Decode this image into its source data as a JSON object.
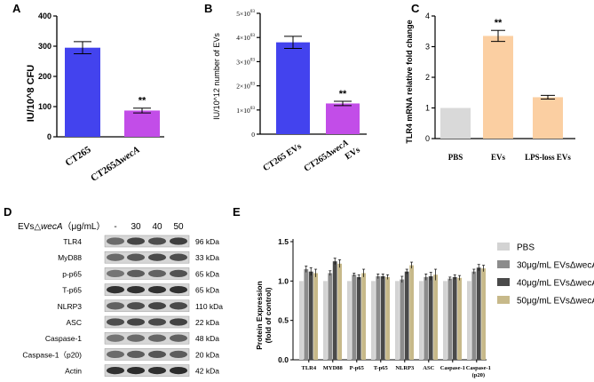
{
  "chart_data": [
    {
      "panel": "A",
      "type": "bar",
      "categories": [
        "CT265",
        "CT265ΔwecA"
      ],
      "values": [
        295,
        87
      ],
      "errors": [
        20,
        8
      ],
      "colors": [
        "#4343ee",
        "#c24de8"
      ],
      "ylabel": "IU/10^8 CFU",
      "ylim": [
        0,
        400
      ],
      "yticks": [
        "0",
        "100",
        "200",
        "300",
        "400"
      ],
      "annotations": [
        "",
        "**"
      ]
    },
    {
      "panel": "B",
      "type": "bar",
      "categories": [
        "CT265 EVs",
        "CT265ΔwecA EVs"
      ],
      "values": [
        3800,
        1270
      ],
      "errors": [
        250,
        90
      ],
      "colors": [
        "#4343ee",
        "#c24de8"
      ],
      "ylabel": "IU/10^12 number of EVs",
      "ylim": [
        0,
        5000
      ],
      "yticks": [
        "0",
        "1×10^03",
        "2×10^03",
        "3×10^03",
        "4×10^03",
        "5×10^03"
      ],
      "annotations": [
        "",
        "**"
      ]
    },
    {
      "panel": "C",
      "type": "bar",
      "categories": [
        "PBS",
        "EVs",
        "LPS-loss EVs"
      ],
      "values": [
        1.0,
        3.35,
        1.35
      ],
      "errors": [
        0,
        0.18,
        0.06
      ],
      "colors": [
        "#d9d9d9",
        "#fbcfa2",
        "#fbcfa2"
      ],
      "ylabel": "TLR4 mRNA relative fold change",
      "ylim": [
        0,
        4
      ],
      "yticks": [
        "0",
        "1",
        "2",
        "3",
        "4"
      ],
      "annotations": [
        "",
        "**",
        ""
      ]
    },
    {
      "panel": "E",
      "type": "bar",
      "categories": [
        "TLR4",
        "MYD88",
        "P-p65",
        "T-p65",
        "NLRP3",
        "ASC",
        "Caspase-1",
        "Caspase-1 (p20)"
      ],
      "series": [
        {
          "name": "PBS",
          "color": "#d3d3d3",
          "values": [
            1.0,
            1.0,
            1.0,
            1.0,
            1.0,
            1.0,
            1.0,
            1.0
          ],
          "errors": [
            0,
            0,
            0,
            0,
            0,
            0,
            0,
            0
          ]
        },
        {
          "name": "30μg/mL EVsΔwecA",
          "color": "#8c8c8c",
          "values": [
            1.15,
            1.1,
            1.08,
            1.06,
            1.02,
            1.05,
            1.03,
            1.12
          ],
          "errors": [
            0.04,
            0.03,
            0.02,
            0.03,
            0.04,
            0.04,
            0.02,
            0.03
          ]
        },
        {
          "name": "40μg/mL EVsΔwecA",
          "color": "#4a4a4a",
          "values": [
            1.12,
            1.25,
            1.05,
            1.06,
            1.12,
            1.06,
            1.05,
            1.17
          ],
          "errors": [
            0.05,
            0.04,
            0.03,
            0.03,
            0.03,
            0.05,
            0.03,
            0.04
          ]
        },
        {
          "name": "50μg/mL EVsΔwecA",
          "color": "#c7b98a",
          "values": [
            1.1,
            1.22,
            1.1,
            1.05,
            1.2,
            1.08,
            1.04,
            1.16
          ],
          "errors": [
            0.05,
            0.05,
            0.05,
            0.03,
            0.04,
            0.07,
            0.03,
            0.04
          ]
        }
      ],
      "ylabel": "Protein Expression (fold of control)",
      "ylim": [
        0,
        1.5
      ],
      "yticks": [
        "0.0",
        "0.5",
        "1.0",
        "1.5"
      ]
    }
  ],
  "panels": {
    "A": {
      "letter": "A",
      "cat2_prefix": "CT265Δ",
      "cat2_italic": "wecA"
    },
    "B": {
      "letter": "B",
      "cat2_prefix": "CT265Δ",
      "cat2_italic": "wecA",
      "cat2_line2": "EVs"
    },
    "C": {
      "letter": "C"
    },
    "D": {
      "letter": "D",
      "header_prefix": "EVs△",
      "header_italic": "wecA",
      "header_unit": "（μg/mL）",
      "doses": [
        "-",
        "30",
        "40",
        "50"
      ],
      "blots": [
        {
          "protein": "TLR4",
          "kda": "96 kDa"
        },
        {
          "protein": "MyD88",
          "kda": "33 kDa"
        },
        {
          "protein": "p-p65",
          "kda": "65 kDa"
        },
        {
          "protein": "T-p65",
          "kda": "65 kDa"
        },
        {
          "protein": "NLRP3",
          "kda": "110 kDa"
        },
        {
          "protein": "ASC",
          "kda": "22 kDa"
        },
        {
          "protein": "Caspase-1",
          "kda": "48 kDa"
        },
        {
          "protein": "Caspase-1（p20)",
          "kda": "20 kDa"
        },
        {
          "protein": "Actin",
          "kda": "42 kDa"
        }
      ]
    },
    "E": {
      "letter": "E",
      "ylabel_line1": "Protein Expression",
      "ylabel_line2": "(fold of control)",
      "last_cat_line1": "Caspase-1",
      "last_cat_line2": "(p20)"
    }
  }
}
